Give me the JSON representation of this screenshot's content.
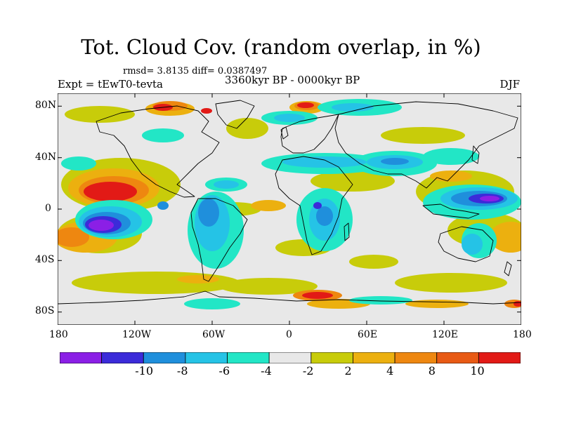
{
  "title": "Tot. Cloud Cov. (random overlap, in %)",
  "stats": "rmsd= 3.8135  diff= 0.0387497",
  "experiment": "Expt = tEwT0-tevta",
  "period": "3360kyr BP - 0000kyr BP",
  "season": "DJF",
  "lat_labels": [
    "80N",
    "40N",
    "0",
    "40S",
    "80S"
  ],
  "lon_labels": [
    "180",
    "120W",
    "60W",
    "0",
    "60E",
    "120E",
    "180"
  ],
  "colorbar": {
    "colors": [
      "#8b1fe6",
      "#3b2bd9",
      "#1f8fdc",
      "#25c3e6",
      "#22e6c6",
      "#e8e8e8",
      "#c8cc0a",
      "#ecb00f",
      "#ee8710",
      "#e85a14",
      "#e21a16"
    ],
    "labels": [
      "-10",
      "-8",
      "-6",
      "-4",
      "-2",
      "2",
      "4",
      "8",
      "10"
    ]
  }
}
